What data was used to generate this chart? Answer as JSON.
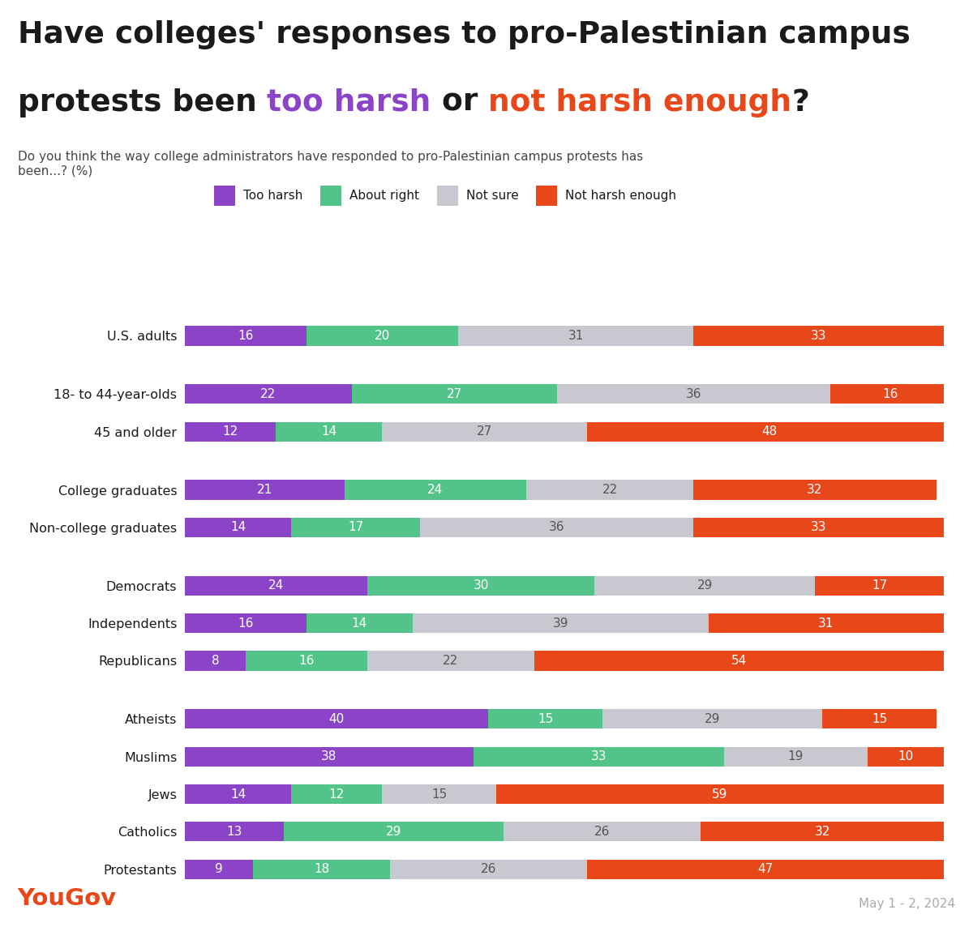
{
  "subtitle": "Do you think the way college administrators have responded to pro-Palestinian campus protests has\nbeen...? (%)",
  "categories": [
    "U.S. adults",
    "18- to 44-year-olds",
    "45 and older",
    "College graduates",
    "Non-college graduates",
    "Democrats",
    "Independents",
    "Republicans",
    "Atheists",
    "Muslims",
    "Jews",
    "Catholics",
    "Protestants"
  ],
  "data": {
    "too_harsh": [
      16,
      22,
      12,
      21,
      14,
      24,
      16,
      8,
      40,
      38,
      14,
      13,
      9
    ],
    "about_right": [
      20,
      27,
      14,
      24,
      17,
      30,
      14,
      16,
      15,
      33,
      12,
      29,
      18
    ],
    "not_sure": [
      31,
      36,
      27,
      22,
      36,
      29,
      39,
      22,
      29,
      19,
      15,
      26,
      26
    ],
    "not_harsh_enough": [
      33,
      16,
      48,
      32,
      33,
      17,
      31,
      54,
      15,
      10,
      59,
      32,
      47
    ]
  },
  "colors": {
    "too_harsh": "#8b44c8",
    "about_right": "#52c48a",
    "not_sure": "#c8c8d0",
    "not_harsh_enough": "#e8471a"
  },
  "legend_labels": [
    "Too harsh",
    "About right",
    "Not sure",
    "Not harsh enough"
  ],
  "legend_keys": [
    "too_harsh",
    "about_right",
    "not_sure",
    "not_harsh_enough"
  ],
  "yougov_color": "#e8471a",
  "date_text": "May 1 - 2, 2024",
  "background_color": "#ffffff",
  "title_line1": "Have colleges' responses to pro-Palestinian campus",
  "title_line2_parts": [
    {
      "text": "protests been ",
      "color": "#1a1a1a"
    },
    {
      "text": "too harsh",
      "color": "#8b44c8"
    },
    {
      "text": " or ",
      "color": "#1a1a1a"
    },
    {
      "text": "not harsh enough",
      "color": "#e8471a"
    },
    {
      "text": "?",
      "color": "#1a1a1a"
    }
  ],
  "title_fontsize": 27,
  "subtitle_fontsize": 11,
  "bar_label_fontsize": 11,
  "ytick_fontsize": 11.5
}
